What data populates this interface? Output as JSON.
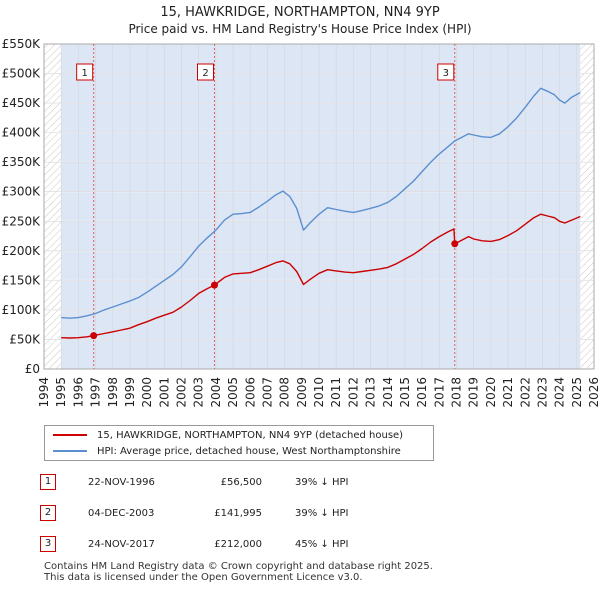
{
  "title": "15, HAWKRIDGE, NORTHAMPTON, NN4 9YP",
  "subtitle": "Price paid vs. HM Land Registry's House Price Index (HPI)",
  "colors": {
    "property": "#cc0000",
    "hpi": "#5b8fd0",
    "band": "#dde6f5",
    "vline": "#e06060"
  },
  "chart_data": {
    "type": "line",
    "xlim": [
      1994,
      2026
    ],
    "ylim": [
      0,
      550000
    ],
    "x_ticks": [
      1994,
      1995,
      1996,
      1997,
      1998,
      1999,
      2000,
      2001,
      2002,
      2003,
      2004,
      2005,
      2006,
      2007,
      2008,
      2009,
      2010,
      2011,
      2012,
      2013,
      2014,
      2015,
      2016,
      2017,
      2018,
      2019,
      2020,
      2021,
      2022,
      2023,
      2024,
      2025,
      2026
    ],
    "y_ticks": [
      {
        "value": 0,
        "label": "£0"
      },
      {
        "value": 50000,
        "label": "£50K"
      },
      {
        "value": 100000,
        "label": "£100K"
      },
      {
        "value": 150000,
        "label": "£150K"
      },
      {
        "value": 200000,
        "label": "£200K"
      },
      {
        "value": 250000,
        "label": "£250K"
      },
      {
        "value": 300000,
        "label": "£300K"
      },
      {
        "value": 350000,
        "label": "£350K"
      },
      {
        "value": 400000,
        "label": "£400K"
      },
      {
        "value": 450000,
        "label": "£450K"
      },
      {
        "value": 500000,
        "label": "£500K"
      },
      {
        "value": 550000,
        "label": "£550K"
      }
    ],
    "data_range": [
      1995.0,
      2025.2
    ],
    "series": [
      {
        "name": "15, HAWKRIDGE, NORTHAMPTON, NN4 9YP (detached house)",
        "color": "#cc0000",
        "points": [
          [
            1995.0,
            53000
          ],
          [
            1995.5,
            52500
          ],
          [
            1996.0,
            53000
          ],
          [
            1996.5,
            54500
          ],
          [
            1996.89,
            56500
          ],
          [
            1997.5,
            60000
          ],
          [
            1998.0,
            63000
          ],
          [
            1998.5,
            66000
          ],
          [
            1999.0,
            69000
          ],
          [
            1999.5,
            75000
          ],
          [
            2000.0,
            80000
          ],
          [
            2000.5,
            86000
          ],
          [
            2001.0,
            91000
          ],
          [
            2001.5,
            96000
          ],
          [
            2002.0,
            105000
          ],
          [
            2002.5,
            116000
          ],
          [
            2003.0,
            128000
          ],
          [
            2003.5,
            136000
          ],
          [
            2003.92,
            141995
          ],
          [
            2004.5,
            155000
          ],
          [
            2005.0,
            161000
          ],
          [
            2005.5,
            162000
          ],
          [
            2006.0,
            163000
          ],
          [
            2006.5,
            168000
          ],
          [
            2007.0,
            174000
          ],
          [
            2007.5,
            180000
          ],
          [
            2007.9,
            183000
          ],
          [
            2008.3,
            178000
          ],
          [
            2008.7,
            165000
          ],
          [
            2009.1,
            143000
          ],
          [
            2009.5,
            152000
          ],
          [
            2010.0,
            162000
          ],
          [
            2010.5,
            168000
          ],
          [
            2011.0,
            166000
          ],
          [
            2011.5,
            164000
          ],
          [
            2012.0,
            163000
          ],
          [
            2012.5,
            165000
          ],
          [
            2013.0,
            167000
          ],
          [
            2013.5,
            169000
          ],
          [
            2014.0,
            172000
          ],
          [
            2014.5,
            178000
          ],
          [
            2015.0,
            186000
          ],
          [
            2015.5,
            194000
          ],
          [
            2016.0,
            204000
          ],
          [
            2016.5,
            215000
          ],
          [
            2017.0,
            224000
          ],
          [
            2017.5,
            232000
          ],
          [
            2017.85,
            237000
          ],
          [
            2017.9,
            212000
          ],
          [
            2018.3,
            218000
          ],
          [
            2018.7,
            224000
          ],
          [
            2019.0,
            220000
          ],
          [
            2019.5,
            217000
          ],
          [
            2020.0,
            216000
          ],
          [
            2020.5,
            219000
          ],
          [
            2021.0,
            226000
          ],
          [
            2021.5,
            234000
          ],
          [
            2022.0,
            245000
          ],
          [
            2022.5,
            256000
          ],
          [
            2022.9,
            262000
          ],
          [
            2023.3,
            259000
          ],
          [
            2023.7,
            256000
          ],
          [
            2024.0,
            250000
          ],
          [
            2024.3,
            247000
          ],
          [
            2024.7,
            252000
          ],
          [
            2025.2,
            258000
          ]
        ]
      },
      {
        "name": "HPI: Average price, detached house, West Northamptonshire",
        "color": "#5b8fd0",
        "points": [
          [
            1995.0,
            87000
          ],
          [
            1995.5,
            86000
          ],
          [
            1996.0,
            87000
          ],
          [
            1996.5,
            90000
          ],
          [
            1997.0,
            94000
          ],
          [
            1997.5,
            100000
          ],
          [
            1998.0,
            105000
          ],
          [
            1998.5,
            110000
          ],
          [
            1999.0,
            115000
          ],
          [
            1999.5,
            121000
          ],
          [
            2000.0,
            130000
          ],
          [
            2000.5,
            140000
          ],
          [
            2001.0,
            150000
          ],
          [
            2001.5,
            160000
          ],
          [
            2002.0,
            173000
          ],
          [
            2002.5,
            190000
          ],
          [
            2003.0,
            208000
          ],
          [
            2003.5,
            222000
          ],
          [
            2004.0,
            235000
          ],
          [
            2004.5,
            252000
          ],
          [
            2005.0,
            262000
          ],
          [
            2005.5,
            263000
          ],
          [
            2006.0,
            265000
          ],
          [
            2006.5,
            274000
          ],
          [
            2007.0,
            284000
          ],
          [
            2007.5,
            295000
          ],
          [
            2007.9,
            301000
          ],
          [
            2008.3,
            292000
          ],
          [
            2008.7,
            272000
          ],
          [
            2009.1,
            235000
          ],
          [
            2009.5,
            248000
          ],
          [
            2010.0,
            262000
          ],
          [
            2010.5,
            273000
          ],
          [
            2011.0,
            270000
          ],
          [
            2011.5,
            267000
          ],
          [
            2012.0,
            265000
          ],
          [
            2012.5,
            268000
          ],
          [
            2013.0,
            272000
          ],
          [
            2013.5,
            276000
          ],
          [
            2014.0,
            282000
          ],
          [
            2014.5,
            292000
          ],
          [
            2015.0,
            305000
          ],
          [
            2015.5,
            318000
          ],
          [
            2016.0,
            334000
          ],
          [
            2016.5,
            350000
          ],
          [
            2017.0,
            364000
          ],
          [
            2017.5,
            376000
          ],
          [
            2017.9,
            386000
          ],
          [
            2018.3,
            392000
          ],
          [
            2018.7,
            398000
          ],
          [
            2019.0,
            396000
          ],
          [
            2019.5,
            393000
          ],
          [
            2020.0,
            392000
          ],
          [
            2020.5,
            398000
          ],
          [
            2021.0,
            410000
          ],
          [
            2021.5,
            425000
          ],
          [
            2022.0,
            443000
          ],
          [
            2022.5,
            462000
          ],
          [
            2022.9,
            475000
          ],
          [
            2023.3,
            470000
          ],
          [
            2023.7,
            464000
          ],
          [
            2024.0,
            455000
          ],
          [
            2024.3,
            450000
          ],
          [
            2024.7,
            460000
          ],
          [
            2025.2,
            468000
          ]
        ]
      }
    ],
    "sales": [
      {
        "id": "1",
        "x": 1996.89,
        "price": 56500
      },
      {
        "id": "2",
        "x": 2003.92,
        "price": 141995
      },
      {
        "id": "3",
        "x": 2017.9,
        "price": 212000
      }
    ]
  },
  "legend": {
    "property_label": "15, HAWKRIDGE, NORTHAMPTON, NN4 9YP (detached house)",
    "hpi_label": "HPI: Average price, detached house, West Northamptonshire"
  },
  "sales_table": [
    {
      "num": "1",
      "date": "22-NOV-1996",
      "price": "£56,500",
      "diff": "39% ↓ HPI"
    },
    {
      "num": "2",
      "date": "04-DEC-2003",
      "price": "£141,995",
      "diff": "39% ↓ HPI"
    },
    {
      "num": "3",
      "date": "24-NOV-2017",
      "price": "£212,000",
      "diff": "45% ↓ HPI"
    }
  ],
  "footer": {
    "line1": "Contains HM Land Registry data © Crown copyright and database right 2025.",
    "line2": "This data is licensed under the Open Government Licence v3.0."
  }
}
